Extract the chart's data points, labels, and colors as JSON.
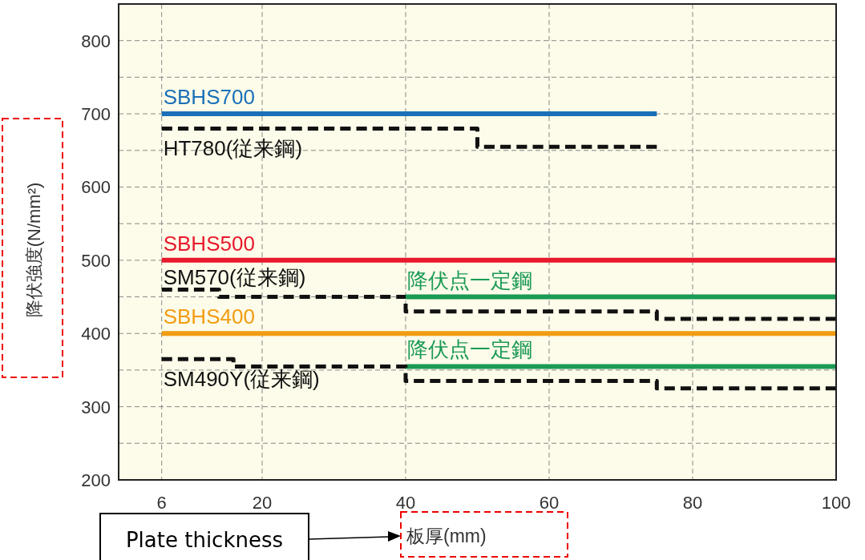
{
  "chart_data": {
    "type": "step",
    "xlabel": "板厚(mm)",
    "ylabel": "降伏強度(N/mm²)",
    "xlim": [
      0,
      100
    ],
    "xticks": [
      6,
      20,
      40,
      60,
      80,
      100
    ],
    "ylim": [
      200,
      850
    ],
    "yticks": [
      200,
      {
        "value": 250,
        "label": null
      },
      300,
      {
        "value": 350,
        "label": null
      },
      400,
      {
        "value": 450,
        "label": null
      },
      500,
      {
        "value": 550,
        "label": null
      },
      600,
      {
        "value": 650,
        "label": null
      },
      700,
      {
        "value": 750,
        "label": null
      },
      800
    ],
    "grid": true,
    "line_style": "solid",
    "series": [
      {
        "name": "SBHS700",
        "color": "#1a6fb8",
        "x": [
          6,
          75
        ],
        "values": [
          700,
          700
        ]
      },
      {
        "name": "HT780(従来鋼)",
        "color": "#111111",
        "line_style": "dashed",
        "x": [
          6,
          50,
          75
        ],
        "values": [
          680,
          655,
          655
        ]
      },
      {
        "name": "SBHS500",
        "color": "#e8192c",
        "x": [
          6,
          100
        ],
        "values": [
          500,
          500
        ]
      },
      {
        "name": "SM570(従来鋼)",
        "color": "#111111",
        "line_style": "dashed",
        "x": [
          6,
          14,
          40,
          75,
          100
        ],
        "values": [
          460,
          450,
          430,
          420,
          420
        ]
      },
      {
        "name": "降伏点一定鋼",
        "color": "#1a9a55",
        "x": [
          40,
          100
        ],
        "values": [
          450,
          450
        ]
      },
      {
        "name": "SBHS400",
        "color": "#f29c12",
        "x": [
          6,
          100
        ],
        "values": [
          400,
          400
        ]
      },
      {
        "name": "降伏点一定鋼",
        "color": "#1a9a55",
        "x": [
          40,
          100
        ],
        "values": [
          355,
          355
        ]
      },
      {
        "name": "SM490Y(従来鋼)",
        "color": "#111111",
        "line_style": "dashed",
        "x": [
          6,
          16,
          40,
          75,
          100
        ],
        "values": [
          365,
          355,
          335,
          325,
          325
        ]
      }
    ],
    "annotations": [
      "Plate thickness"
    ]
  }
}
